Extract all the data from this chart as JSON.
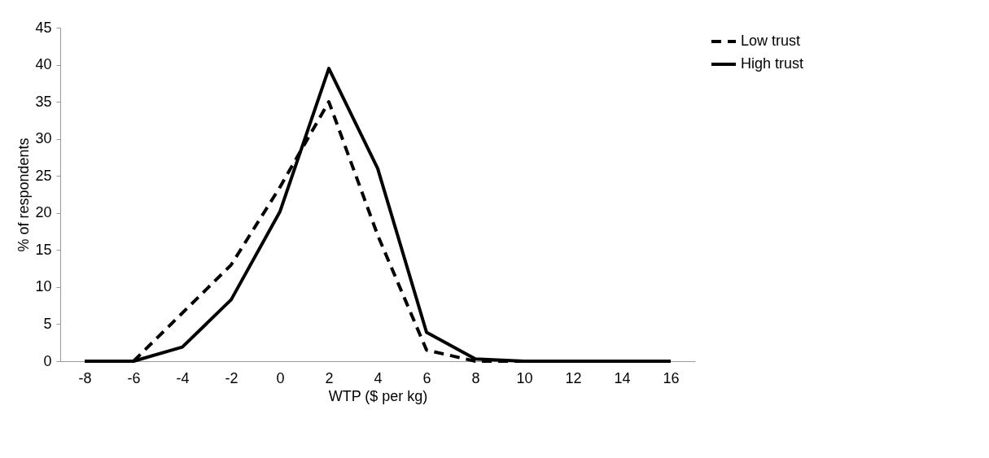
{
  "chart_data": {
    "type": "line",
    "xlabel": "WTP ($ per kg)",
    "ylabel": "% of respondents",
    "categories": [
      "-8",
      "-6",
      "-4",
      "-2",
      "0",
      "2",
      "4",
      "6",
      "8",
      "10",
      "12",
      "14",
      "16"
    ],
    "series": [
      {
        "name": "Low trust",
        "color": "#000000",
        "line_style": "dashed",
        "values": [
          0,
          0,
          6.5,
          13,
          23.5,
          35,
          17,
          1.5,
          0,
          0,
          0,
          0,
          0
        ]
      },
      {
        "name": "High trust",
        "color": "#000000",
        "line_style": "solid",
        "values": [
          0,
          0,
          1.9,
          8.3,
          20.2,
          39.5,
          26,
          3.9,
          0.3,
          0,
          0,
          0,
          0
        ]
      }
    ],
    "ylim": [
      0,
      45
    ],
    "yticks": [
      0,
      5,
      10,
      15,
      20,
      25,
      30,
      35,
      40,
      45
    ],
    "grid": false,
    "legend": "right",
    "marker": "none"
  }
}
